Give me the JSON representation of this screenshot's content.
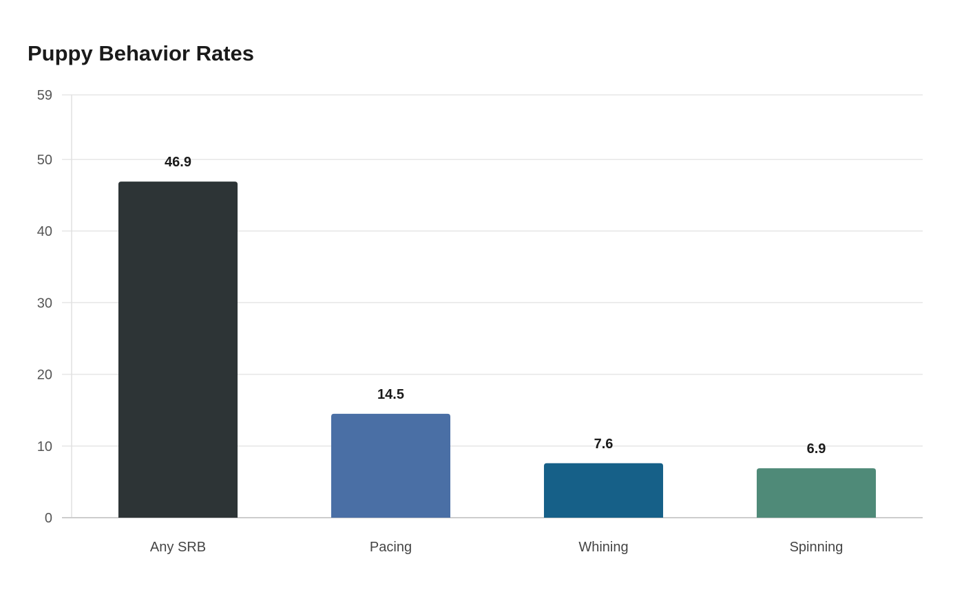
{
  "chart_data": {
    "type": "bar",
    "title": "Puppy Behavior Rates",
    "xlabel": "",
    "ylabel": "",
    "categories": [
      "Any SRB",
      "Pacing",
      "Whining",
      "Spinning"
    ],
    "values": [
      46.9,
      14.5,
      7.6,
      6.9
    ],
    "value_labels": [
      "46.9",
      "14.5",
      "7.6",
      "6.9"
    ],
    "colors": [
      "#2d3436",
      "#4a6fa5",
      "#166088",
      "#4f8a78"
    ],
    "ylim": [
      0,
      59
    ],
    "yticks": [
      0,
      10,
      20,
      30,
      40,
      50,
      59
    ],
    "grid": true,
    "legend": "none"
  }
}
